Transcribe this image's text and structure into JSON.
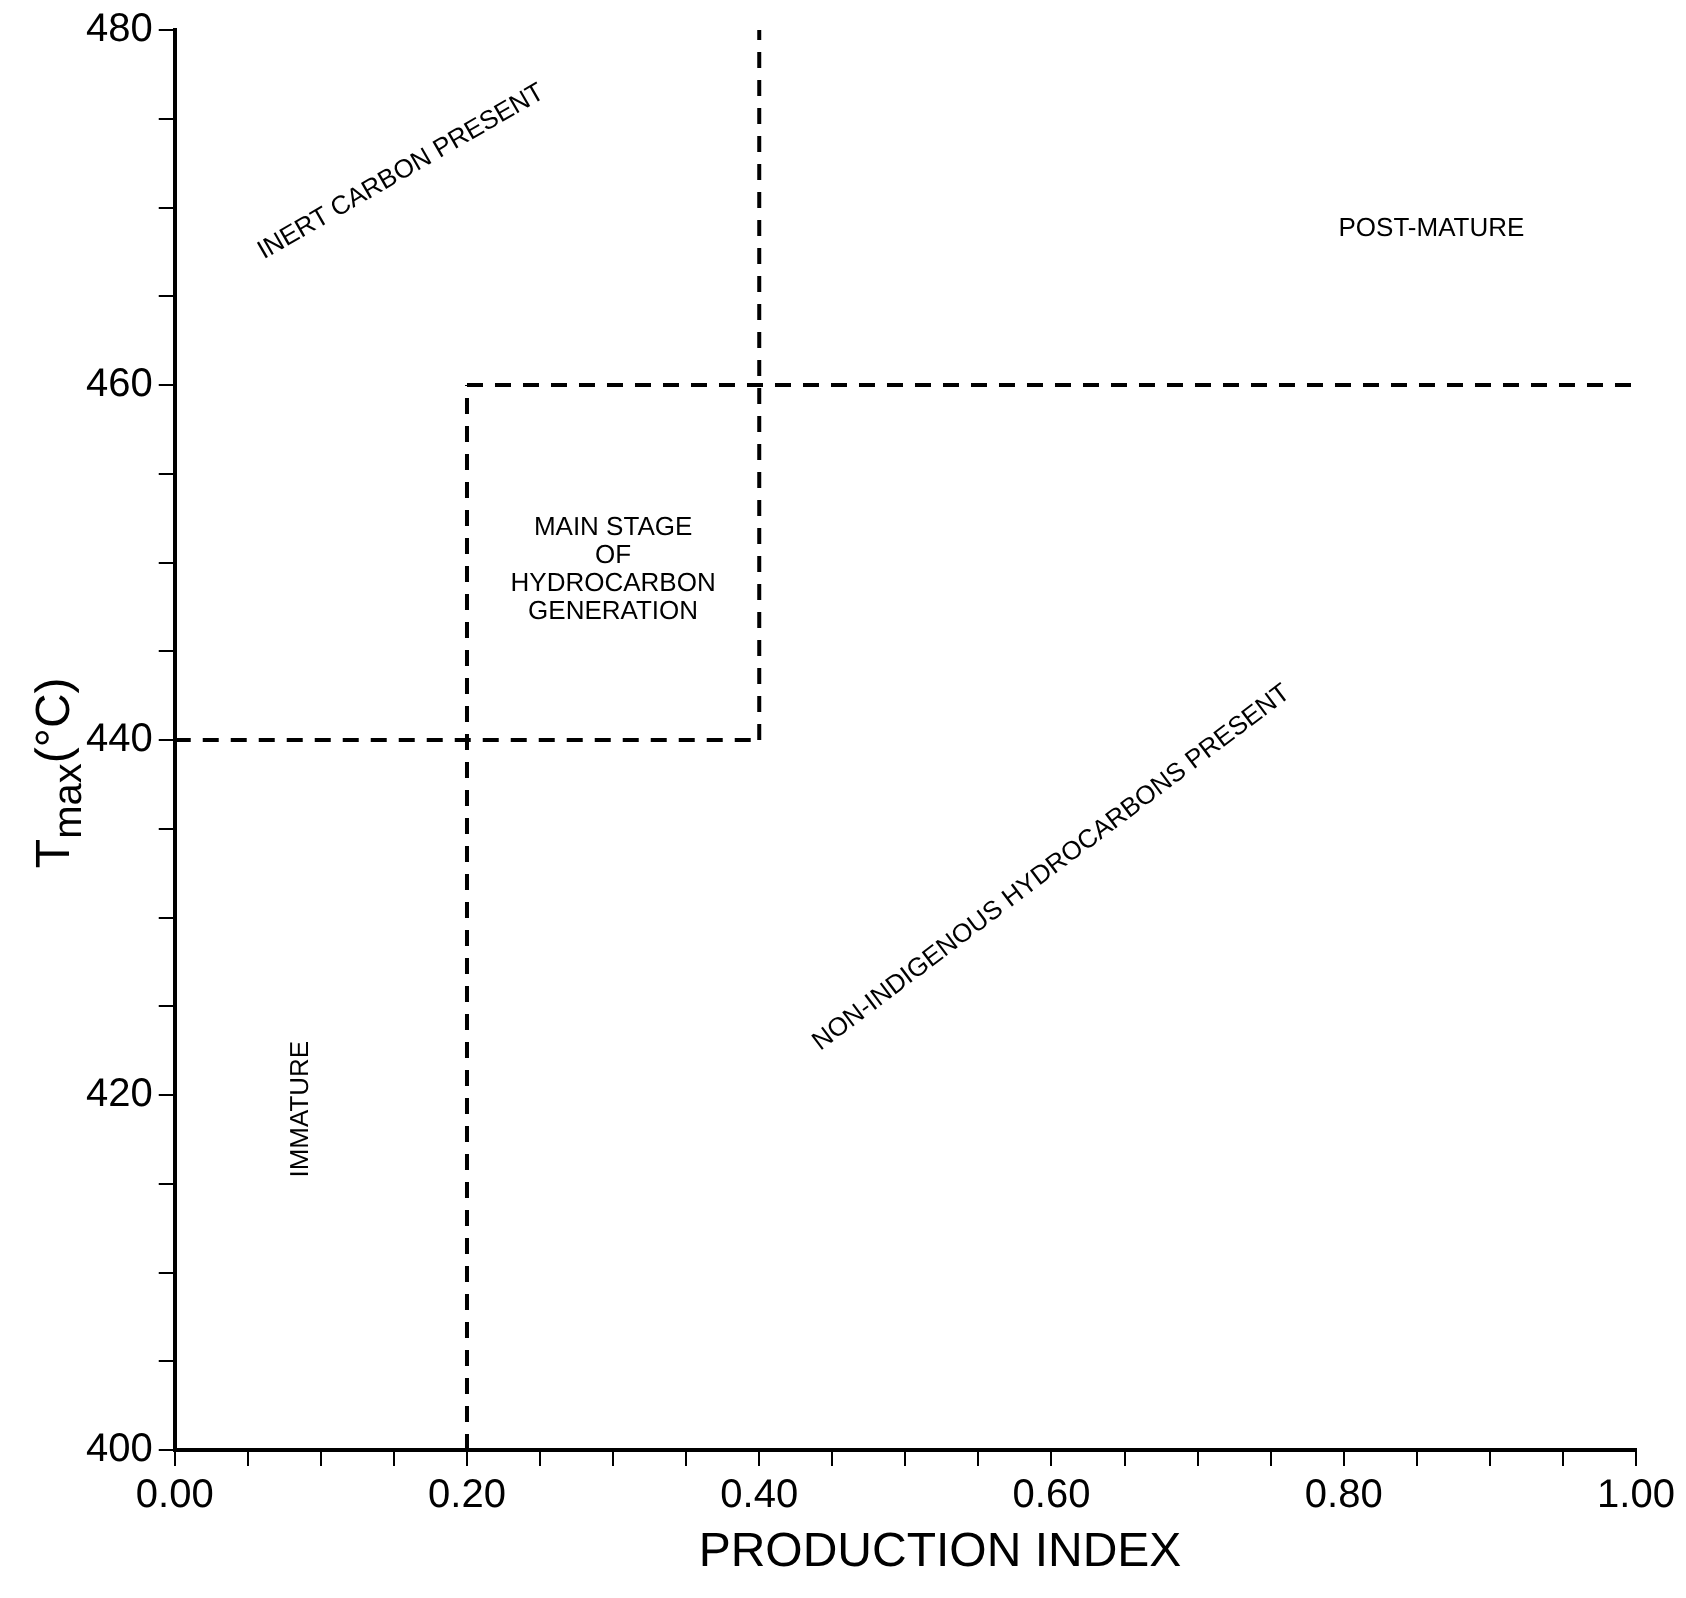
{
  "chart_data": {
    "type": "line",
    "xlabel": "PRODUCTION INDEX",
    "ylabel": "T$_{max}$(°C)",
    "xlim": [
      0,
      1
    ],
    "ylim": [
      400,
      480
    ],
    "xticks": [
      {
        "value": 0,
        "label": "0.00"
      },
      {
        "value": 0.05,
        "label": null
      },
      {
        "value": 0.1,
        "label": null
      },
      {
        "value": 0.15,
        "label": null
      },
      {
        "value": 0.2,
        "label": "0.20"
      },
      {
        "value": 0.25,
        "label": null
      },
      {
        "value": 0.3,
        "label": null
      },
      {
        "value": 0.35,
        "label": null
      },
      {
        "value": 0.4,
        "label": "0.40"
      },
      {
        "value": 0.45,
        "label": null
      },
      {
        "value": 0.5,
        "label": null
      },
      {
        "value": 0.55,
        "label": null
      },
      {
        "value": 0.6,
        "label": "0.60"
      },
      {
        "value": 0.65,
        "label": null
      },
      {
        "value": 0.7,
        "label": null
      },
      {
        "value": 0.75,
        "label": null
      },
      {
        "value": 0.8,
        "label": "0.80"
      },
      {
        "value": 0.85,
        "label": null
      },
      {
        "value": 0.9,
        "label": null
      },
      {
        "value": 0.95,
        "label": null
      },
      {
        "value": 1,
        "label": "1.00"
      }
    ],
    "yticks": [
      400,
      {
        "value": 405,
        "label": null
      },
      {
        "value": 410,
        "label": null
      },
      {
        "value": 415,
        "label": null
      },
      420,
      {
        "value": 425,
        "label": null
      },
      {
        "value": 430,
        "label": null
      },
      {
        "value": 435,
        "label": null
      },
      440,
      {
        "value": 445,
        "label": null
      },
      {
        "value": 450,
        "label": null
      },
      {
        "value": 455,
        "label": null
      },
      460,
      {
        "value": 465,
        "label": null
      },
      {
        "value": 470,
        "label": null
      },
      {
        "value": 475,
        "label": null
      },
      480
    ],
    "grid": false,
    "legend": false,
    "marker": "none",
    "line_style": "dashed",
    "series": [
      {
        "color": "#000000",
        "x": [
          0,
          0.4
        ],
        "values": [
          440,
          440
        ]
      },
      {
        "color": "#000000",
        "x": [
          0.2,
          0.2
        ],
        "values": [
          400,
          460
        ]
      },
      {
        "color": "#000000",
        "x": [
          0.2,
          1
        ],
        "values": [
          460,
          460
        ]
      },
      {
        "color": "#000000",
        "x": [
          0.4,
          0.4
        ],
        "values": [
          440,
          480
        ]
      }
    ],
    "annotations": [
      "INERT CARBON PRESENT",
      "POST-MATURE",
      "MAIN STAGE\nOF\nHYDROCARBON\nGENERATION",
      "NON-INDIGENOUS HYDROCARBONS PRESENT",
      "IMMATURE"
    ]
  }
}
